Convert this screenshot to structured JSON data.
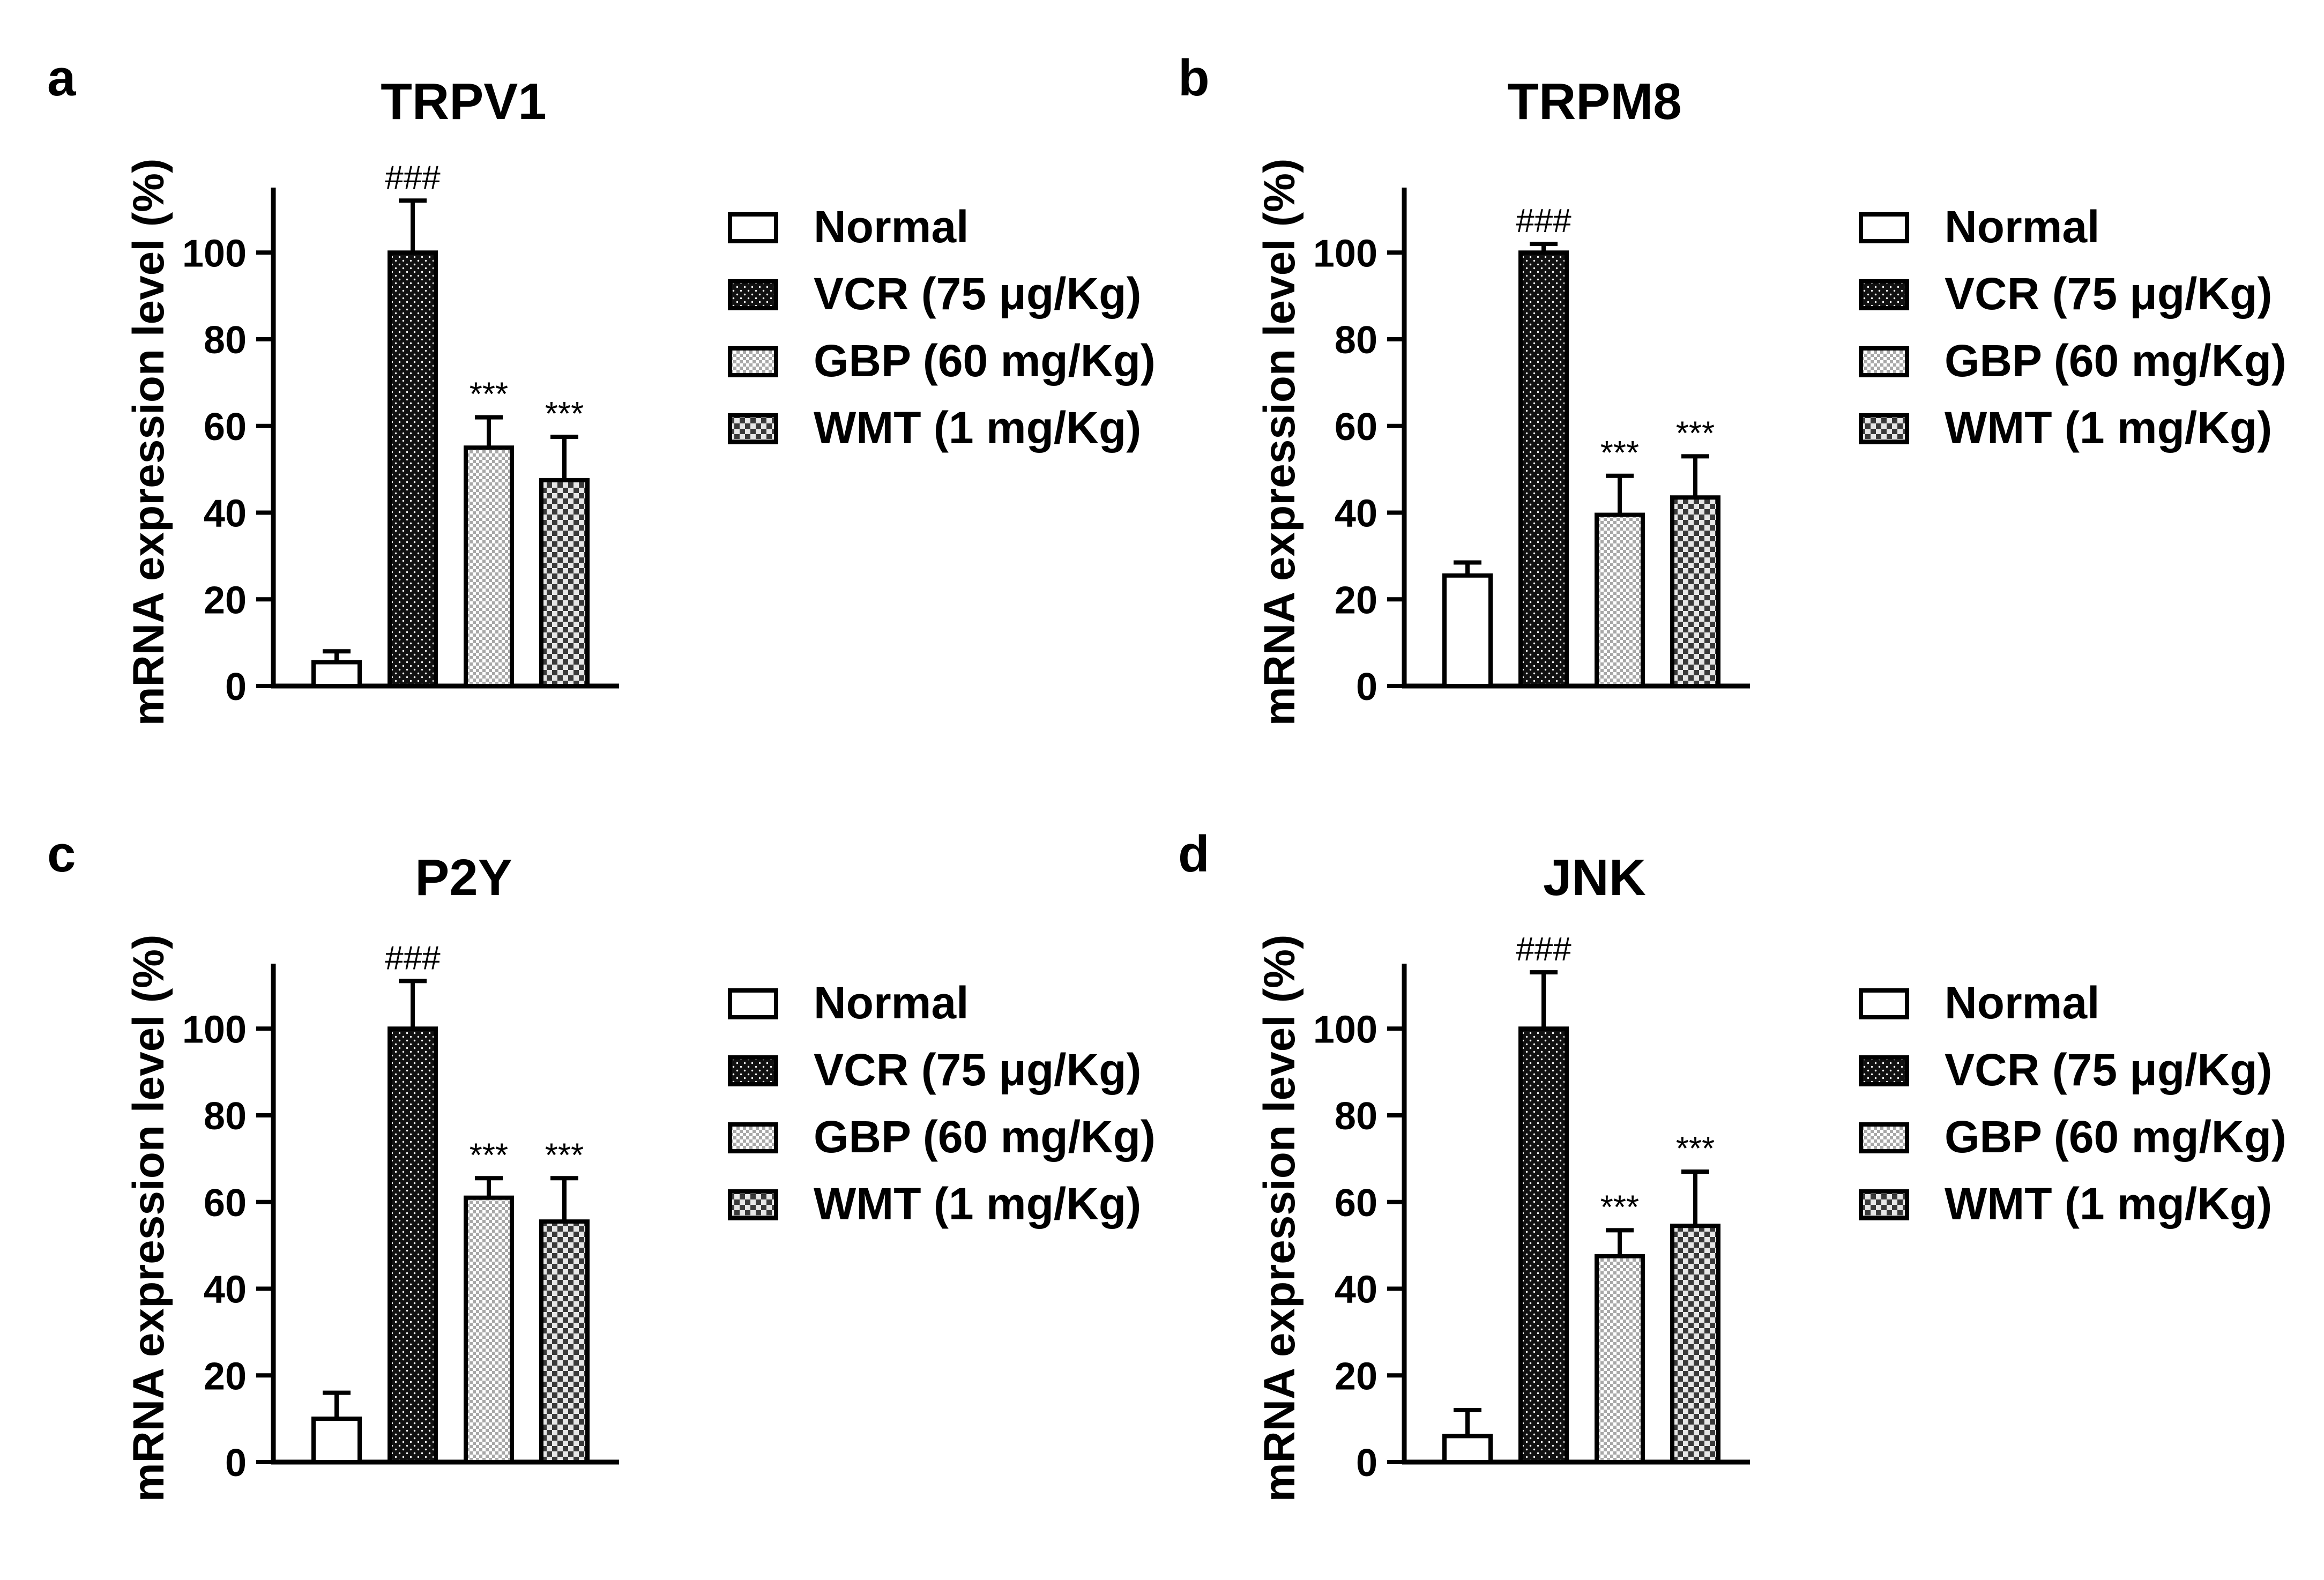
{
  "chart_data": [
    {
      "panel_label": "a",
      "type": "bar",
      "title": "TRPV1",
      "ylabel": "mRNA expression level (%)",
      "xlabel": "",
      "ylim": [
        0,
        115
      ],
      "yticks": [
        "0",
        "20",
        "40",
        "60",
        "80",
        "100"
      ],
      "categories": [
        "Normal",
        "VCR (75 μg/Kg)",
        "GBP (60 mg/Kg)",
        "WMT (1 mg/Kg)"
      ],
      "values": [
        5.5,
        100,
        55,
        47.5
      ],
      "errors": [
        2.5,
        12,
        7,
        10
      ],
      "annotations": [
        "",
        "###",
        "***",
        "***"
      ],
      "legend": [
        "Normal",
        "VCR (75 μg/Kg)",
        "GBP (60 mg/Kg)",
        "WMT (1 mg/Kg)"
      ]
    },
    {
      "panel_label": "b",
      "type": "bar",
      "title": "TRPM8",
      "ylabel": "mRNA expression level (%)",
      "xlabel": "",
      "ylim": [
        0,
        115
      ],
      "yticks": [
        "0",
        "20",
        "40",
        "60",
        "80",
        "100"
      ],
      "categories": [
        "Normal",
        "VCR (75 μg/Kg)",
        "GBP (60 mg/Kg)",
        "WMT (1 mg/Kg)"
      ],
      "values": [
        25.5,
        100,
        39.5,
        43.5
      ],
      "errors": [
        3,
        2,
        9,
        9.5
      ],
      "annotations": [
        "",
        "###",
        "***",
        "***"
      ],
      "legend": [
        "Normal",
        "VCR (75 μg/Kg)",
        "GBP (60 mg/Kg)",
        "WMT (1 mg/Kg)"
      ]
    },
    {
      "panel_label": "c",
      "type": "bar",
      "title": "P2Y",
      "ylabel": "mRNA expression level (%)",
      "xlabel": "",
      "ylim": [
        0,
        115
      ],
      "yticks": [
        "0",
        "20",
        "40",
        "60",
        "80",
        "100"
      ],
      "categories": [
        "Normal",
        "VCR (75 μg/Kg)",
        "GBP (60 mg/Kg)",
        "WMT (1 mg/Kg)"
      ],
      "values": [
        10,
        100,
        61,
        55.5
      ],
      "errors": [
        6,
        11,
        4.5,
        10
      ],
      "annotations": [
        "",
        "###",
        "***",
        "***"
      ],
      "legend": [
        "Normal",
        "VCR (75 μg/Kg)",
        "GBP (60 mg/Kg)",
        "WMT (1 mg/Kg)"
      ]
    },
    {
      "panel_label": "d",
      "type": "bar",
      "title": "JNK",
      "ylabel": "mRNA expression level (%)",
      "xlabel": "",
      "ylim": [
        0,
        115
      ],
      "yticks": [
        "0",
        "20",
        "40",
        "60",
        "80",
        "100"
      ],
      "categories": [
        "Normal",
        "VCR (75 μg/Kg)",
        "GBP (60 mg/Kg)",
        "WMT (1 mg/Kg)"
      ],
      "values": [
        6,
        100,
        47.5,
        54.5
      ],
      "errors": [
        6,
        13,
        6,
        12.5
      ],
      "annotations": [
        "",
        "###",
        "***",
        "***"
      ],
      "legend": [
        "Normal",
        "VCR (75 μg/Kg)",
        "GBP (60 mg/Kg)",
        "WMT (1 mg/Kg)"
      ]
    }
  ],
  "colors": {
    "axis": "#000000",
    "normal_fill": "#ffffff",
    "vcr_fill": "#111111",
    "gbp_fill": "#cfcfcf",
    "wmt_fill": "#6e6e6e"
  }
}
